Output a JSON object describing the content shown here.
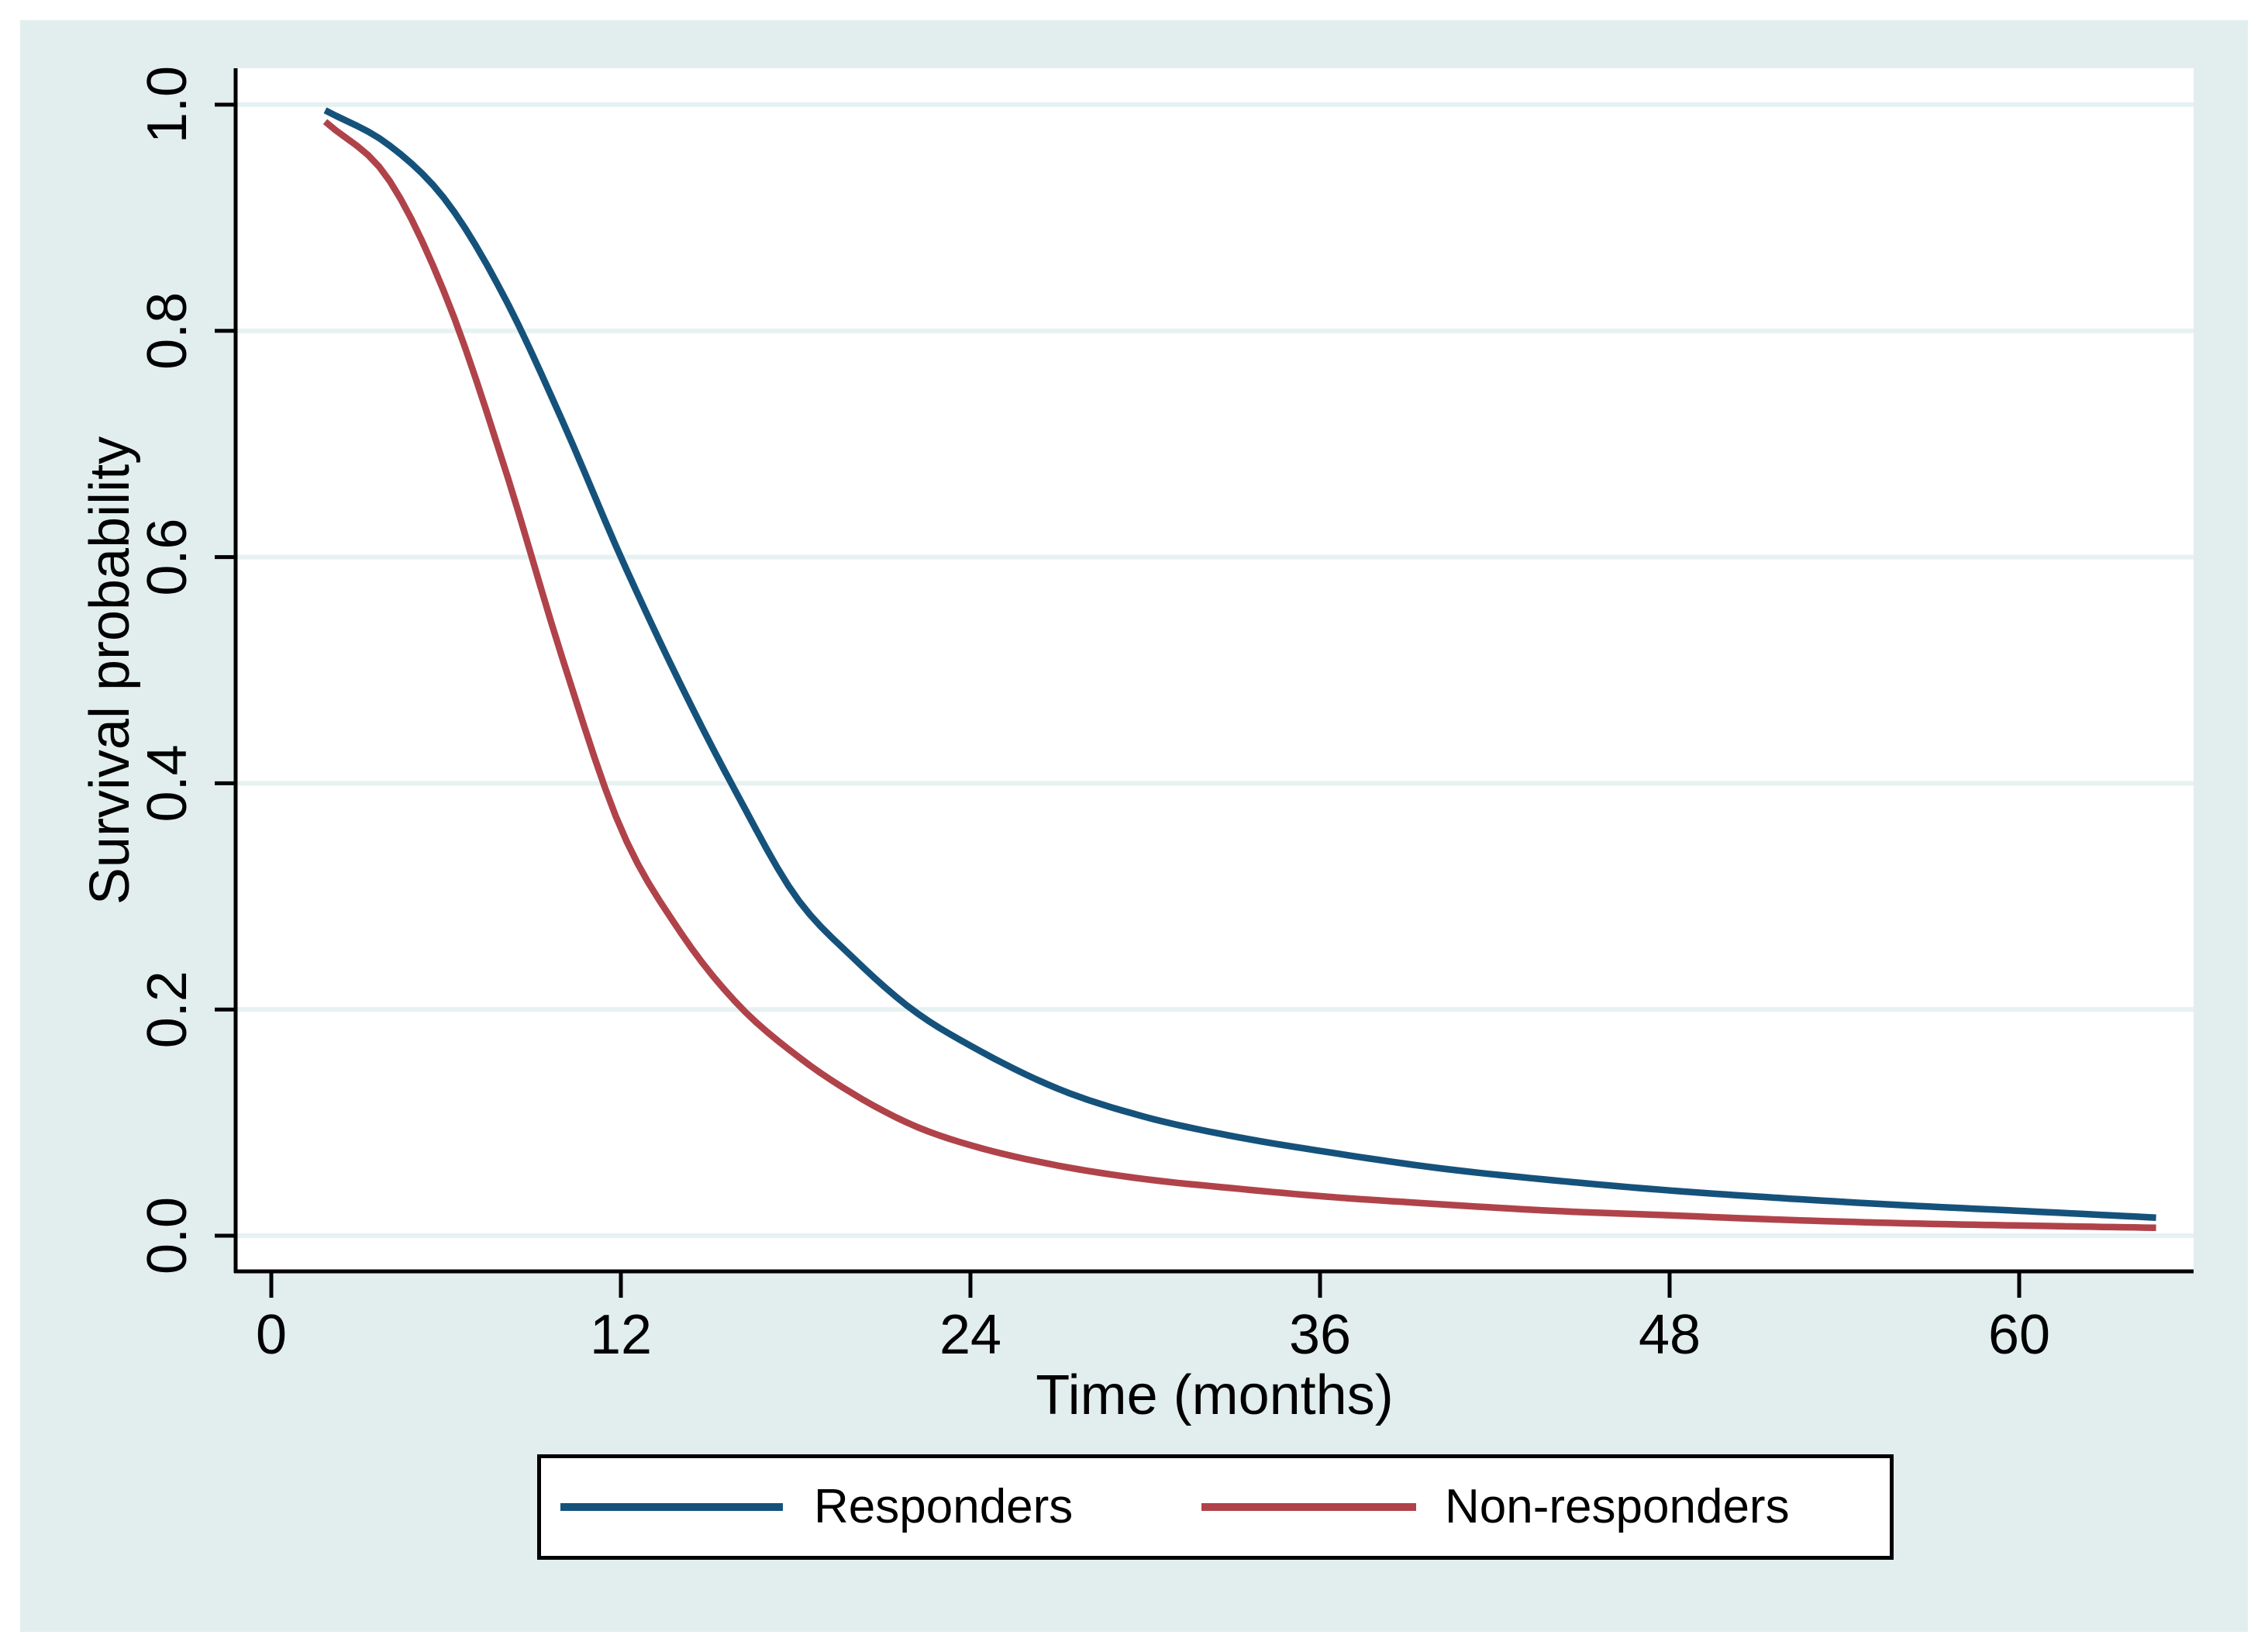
{
  "figure": {
    "background_color": "#e1eeed",
    "plot_background_color": "#ffffff",
    "grid_color": "#e6f2f1",
    "axis_color": "#000000",
    "outer_border_color": "#ffffff"
  },
  "chart_data": {
    "type": "line",
    "title": "",
    "xlabel": "Time (months)",
    "ylabel": "Survival probability",
    "xlim": [
      0,
      66
    ],
    "ylim": [
      0,
      1.0
    ],
    "grid": "horizontal-only",
    "legend_position": "bottom-center",
    "x_ticks": [
      {
        "value": 0,
        "label": "0"
      },
      {
        "value": 12,
        "label": "12"
      },
      {
        "value": 24,
        "label": "24"
      },
      {
        "value": 36,
        "label": "36"
      },
      {
        "value": 48,
        "label": "48"
      },
      {
        "value": 60,
        "label": "60"
      }
    ],
    "y_ticks": [
      {
        "value": 0.0,
        "label": "0.0"
      },
      {
        "value": 0.2,
        "label": "0.2"
      },
      {
        "value": 0.4,
        "label": "0.4"
      },
      {
        "value": 0.6,
        "label": "0.6"
      },
      {
        "value": 0.8,
        "label": "0.8"
      },
      {
        "value": 1.0,
        "label": "1.0"
      }
    ],
    "series": [
      {
        "name": "Responders",
        "color": "#15527b",
        "points": [
          [
            1.85,
            0.995
          ],
          [
            4,
            0.965
          ],
          [
            6,
            0.915
          ],
          [
            8,
            0.83
          ],
          [
            10,
            0.72
          ],
          [
            12,
            0.6
          ],
          [
            14,
            0.49
          ],
          [
            16,
            0.39
          ],
          [
            18,
            0.3
          ],
          [
            20,
            0.245
          ],
          [
            22,
            0.2
          ],
          [
            24,
            0.168
          ],
          [
            27,
            0.13
          ],
          [
            30,
            0.105
          ],
          [
            33,
            0.088
          ],
          [
            36,
            0.075
          ],
          [
            40,
            0.06
          ],
          [
            44,
            0.049
          ],
          [
            48,
            0.04
          ],
          [
            52,
            0.033
          ],
          [
            56,
            0.027
          ],
          [
            60,
            0.022
          ],
          [
            64.7,
            0.016
          ]
        ]
      },
      {
        "name": "Non-responders",
        "color": "#b0434a",
        "points": [
          [
            1.85,
            0.985
          ],
          [
            4,
            0.935
          ],
          [
            6,
            0.83
          ],
          [
            8,
            0.68
          ],
          [
            10,
            0.51
          ],
          [
            12,
            0.36
          ],
          [
            14,
            0.27
          ],
          [
            16,
            0.205
          ],
          [
            18,
            0.16
          ],
          [
            20,
            0.125
          ],
          [
            22,
            0.098
          ],
          [
            24,
            0.08
          ],
          [
            27,
            0.062
          ],
          [
            30,
            0.05
          ],
          [
            33,
            0.042
          ],
          [
            36,
            0.035
          ],
          [
            40,
            0.028
          ],
          [
            44,
            0.022
          ],
          [
            48,
            0.018
          ],
          [
            52,
            0.014
          ],
          [
            56,
            0.011
          ],
          [
            60,
            0.009
          ],
          [
            64.7,
            0.007
          ]
        ]
      }
    ]
  },
  "legend": {
    "items": [
      {
        "label": "Responders",
        "color": "#15527b"
      },
      {
        "label": "Non-responders",
        "color": "#b0434a"
      }
    ]
  }
}
